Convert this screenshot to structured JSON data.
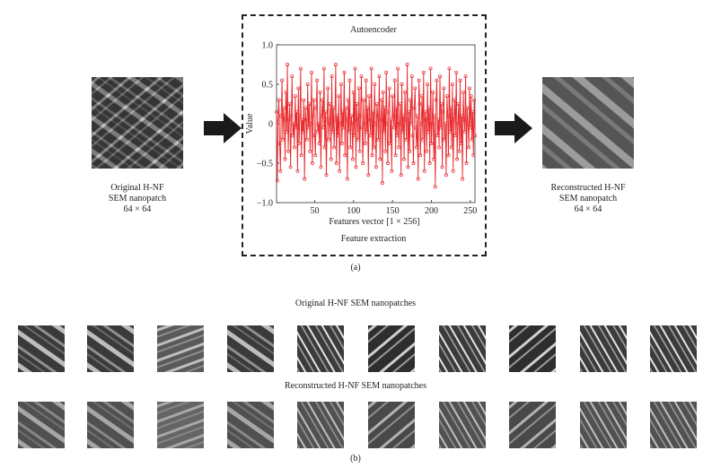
{
  "figure": {
    "panel_a": {
      "left_caption": [
        "Original H-NF",
        "SEM nanopatch",
        "64 × 64"
      ],
      "right_caption": [
        "Reconstructed H-NF",
        "SEM nanopatch",
        "64 × 64"
      ],
      "box_title": "Autoencoder",
      "box_footer": "Feature extraction",
      "label": "(a)"
    },
    "panel_b": {
      "original_title": "Original H-NF SEM nanopatches",
      "reconstructed_title": "Reconstructed H-NF SEM nanopatches",
      "label": "(b)"
    },
    "colors": {
      "series": "#e8272b",
      "axis": "#333333",
      "arrow": "#1a1a1a"
    }
  },
  "chart_data": {
    "type": "line",
    "title": "",
    "xlabel": "Features vector [1 × 256]",
    "ylabel": "Value",
    "xlim": [
      1,
      256
    ],
    "ylim": [
      -1,
      1
    ],
    "xticks": [
      "50",
      "100",
      "150",
      "200",
      "250"
    ],
    "yticks": [
      "1.0",
      "0.5",
      "0",
      "−0.5",
      "−1.0"
    ],
    "series": [
      {
        "marker": "circle",
        "y_values": [
          0.15,
          -0.72,
          0.05,
          0.3,
          -0.25,
          -0.6,
          0.1,
          0.55,
          -0.2,
          0.2,
          0.05,
          -0.45,
          0.4,
          -0.1,
          0.75,
          -0.35,
          0.05,
          0.25,
          -0.55,
          0.1,
          0.6,
          -0.15,
          0.0,
          -0.3,
          0.35,
          -0.05,
          0.15,
          -0.6,
          0.45,
          -0.25,
          0.1,
          0.7,
          -0.4,
          0.05,
          -0.1,
          0.3,
          -0.7,
          0.2,
          0.05,
          -0.2,
          0.5,
          -0.05,
          0.25,
          -0.35,
          0.0,
          0.65,
          -0.5,
          0.1,
          0.3,
          -0.15,
          -0.4,
          0.2,
          0.55,
          -0.1,
          0.0,
          -0.25,
          0.4,
          -0.55,
          0.1,
          0.3,
          -0.05,
          0.7,
          -0.3,
          0.15,
          -0.65,
          0.05,
          0.45,
          -0.2,
          0.0,
          0.25,
          -0.45,
          0.6,
          -0.1,
          0.2,
          -0.3,
          0.05,
          0.75,
          -0.5,
          0.1,
          -0.15,
          0.35,
          -0.6,
          0.0,
          0.5,
          -0.25,
          0.15,
          -0.05,
          0.65,
          -0.4,
          0.2,
          0.05,
          -0.7,
          0.3,
          -0.1,
          0.55,
          -0.3,
          0.1,
          0.0,
          -0.45,
          0.4,
          -0.15,
          0.7,
          -0.55,
          0.25,
          0.05,
          -0.2,
          0.45,
          -0.35,
          0.1,
          0.6,
          -0.05,
          -0.5,
          0.3,
          0.0,
          -0.25,
          0.55,
          -0.1,
          0.2,
          -0.65,
          0.35,
          0.05,
          -0.15,
          0.7,
          -0.4,
          0.15,
          -0.3,
          0.5,
          0.0,
          -0.55,
          0.25,
          0.1,
          -0.2,
          0.6,
          -0.45,
          0.05,
          0.3,
          -0.75,
          0.4,
          -0.1,
          0.2,
          -0.35,
          0.65,
          0.0,
          -0.5,
          0.15,
          0.45,
          -0.25,
          0.05,
          -0.6,
          0.35,
          0.1,
          -0.05,
          0.55,
          -0.4,
          0.2,
          -0.15,
          0.7,
          -0.3,
          0.0,
          0.25,
          -0.65,
          0.5,
          -0.1,
          0.1,
          -0.45,
          0.4,
          0.05,
          -0.2,
          0.75,
          -0.55,
          0.15,
          -0.35,
          0.3,
          0.0,
          0.6,
          -0.15,
          -0.5,
          0.2,
          0.45,
          -0.05,
          -0.3,
          0.1,
          -0.7,
          0.55,
          0.25,
          -0.4,
          0.0,
          0.35,
          -0.2,
          0.65,
          -0.6,
          0.15,
          0.05,
          -0.35,
          0.5,
          -0.1,
          0.2,
          -0.5,
          0.7,
          -0.25,
          0.0,
          0.4,
          -0.45,
          0.1,
          -0.8,
          0.3,
          0.55,
          -0.15,
          0.05,
          -0.3,
          0.6,
          -0.05,
          0.25,
          -0.55,
          0.15,
          0.45,
          -0.2,
          0.0,
          -0.65,
          0.35,
          0.1,
          -0.4,
          0.7,
          -0.1,
          0.2,
          -0.3,
          0.5,
          -0.6,
          0.05,
          0.3,
          -0.15,
          0.65,
          -0.45,
          0.0,
          0.25,
          -0.35,
          0.55,
          -0.25,
          0.1,
          -0.7,
          0.4,
          0.05,
          -0.1,
          0.6,
          -0.5,
          0.2,
          0.0,
          -0.3,
          0.45,
          -0.05,
          0.35,
          -0.2,
          0.15,
          -0.4,
          0.3,
          -0.15
        ]
      }
    ]
  }
}
